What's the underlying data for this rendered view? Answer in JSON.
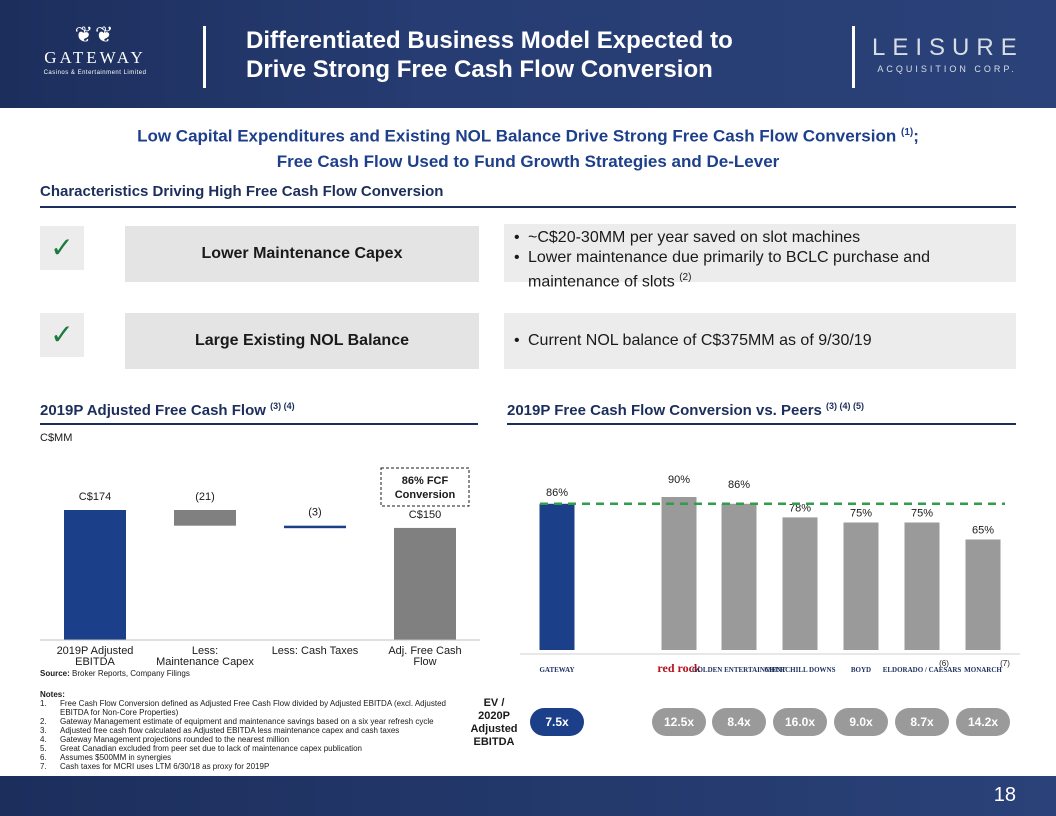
{
  "header": {
    "title_line1": "Differentiated Business Model Expected to",
    "title_line2": "Drive Strong Free Cash Flow Conversion",
    "left_logo": {
      "name": "GATEWAY",
      "sub": "Casinos & Entertainment Limited"
    },
    "right_logo": {
      "name": "LEISURE",
      "sub": "ACQUISITION CORP."
    }
  },
  "subtitle": {
    "line1": "Low Capital Expenditures and Existing NOL Balance Drive Strong Free Cash Flow Conversion",
    "line1_sup": "(1)",
    "line1_end": ";",
    "line2": "Free Cash Flow Used to Fund Growth Strategies and De-Lever"
  },
  "characteristics": {
    "heading": "Characteristics Driving High Free Cash Flow Conversion",
    "rows": [
      {
        "label": "Lower Maintenance Capex",
        "bullets": [
          "~C$20-30MM per year saved on slot machines",
          "Lower maintenance due primarily to BCLC purchase and maintenance of slots"
        ],
        "sup": "(2)"
      },
      {
        "label": "Large Existing NOL Balance",
        "bullets": [
          "Current NOL balance of C$375MM as of 9/30/19"
        ]
      }
    ]
  },
  "chart_data": [
    {
      "type": "bar",
      "title": "2019P Adjusted Free Cash Flow",
      "title_sup": "(3) (4)",
      "unit": "C$MM",
      "categories": [
        "2019P Adjusted EBITDA",
        "Less: Maintenance Capex",
        "Less: Cash Taxes",
        "Adj. Free Cash Flow"
      ],
      "values": [
        174,
        -21,
        -3,
        150
      ],
      "labels": [
        "C$174",
        "(21)",
        "(3)",
        "C$150"
      ],
      "colors": [
        "#1c3f8a",
        "#808080",
        "#1c3f8a",
        "#808080"
      ],
      "annotation": "86% FCF Conversion"
    },
    {
      "type": "bar",
      "title": "2019P Free Cash Flow Conversion vs. Peers",
      "title_sup": "(3) (4) (5)",
      "categories": [
        "Gateway",
        "Red Rock",
        "Golden Entertainment",
        "Churchill Downs",
        "Boyd",
        "Eldorado / Caesars",
        "Monarch"
      ],
      "values": [
        86,
        90,
        86,
        78,
        75,
        75,
        65
      ],
      "labels": [
        "86%",
        "90%",
        "86%",
        "78%",
        "75%",
        "75%",
        "65%"
      ],
      "colors": [
        "#1c3f8a",
        "#9a9a9a",
        "#9a9a9a",
        "#9a9a9a",
        "#9a9a9a",
        "#9a9a9a",
        "#9a9a9a"
      ],
      "reference_line": 86,
      "ylim": [
        0,
        100
      ],
      "footnotes": [
        "",
        "",
        "",
        "",
        "",
        "(6)",
        "(7)"
      ],
      "ev_label": "EV / 2020P Adjusted EBITDA",
      "ev_multiples": [
        "7.5x",
        "12.5x",
        "8.4x",
        "16.0x",
        "9.0x",
        "8.7x",
        "14.2x"
      ]
    }
  ],
  "peer_logos": [
    "GATEWAY",
    "red rock",
    "GOLDEN ENTERTAINMENT",
    "CHURCHILL DOWNS",
    "BOYD",
    "ELDORADO / CAESARS",
    "MONARCH"
  ],
  "source": {
    "label": "Source:",
    "text": "Broker Reports, Company Filings"
  },
  "notes": {
    "title": "Notes:",
    "items": [
      "Free Cash Flow Conversion defined as Adjusted Free Cash Flow divided by Adjusted EBITDA (excl. Adjusted EBITDA for Non-Core Properties)",
      "Gateway Management estimate of equipment and maintenance savings based on a six year refresh cycle",
      "Adjusted free cash flow calculated as Adjusted EBITDA less maintenance capex and cash taxes",
      "Gateway Management projections rounded to the nearest million",
      "Great Canadian excluded from peer set due to lack of maintenance capex publication",
      "Assumes $500MM in synergies",
      "Cash taxes for MCRI uses LTM 6/30/18 as proxy for 2019P"
    ]
  },
  "colors": {
    "navy": "#1c2e5c",
    "blue": "#1c3f8a",
    "green": "#2e9e4a",
    "gray": "#9a9a9a"
  },
  "page_number": "18"
}
